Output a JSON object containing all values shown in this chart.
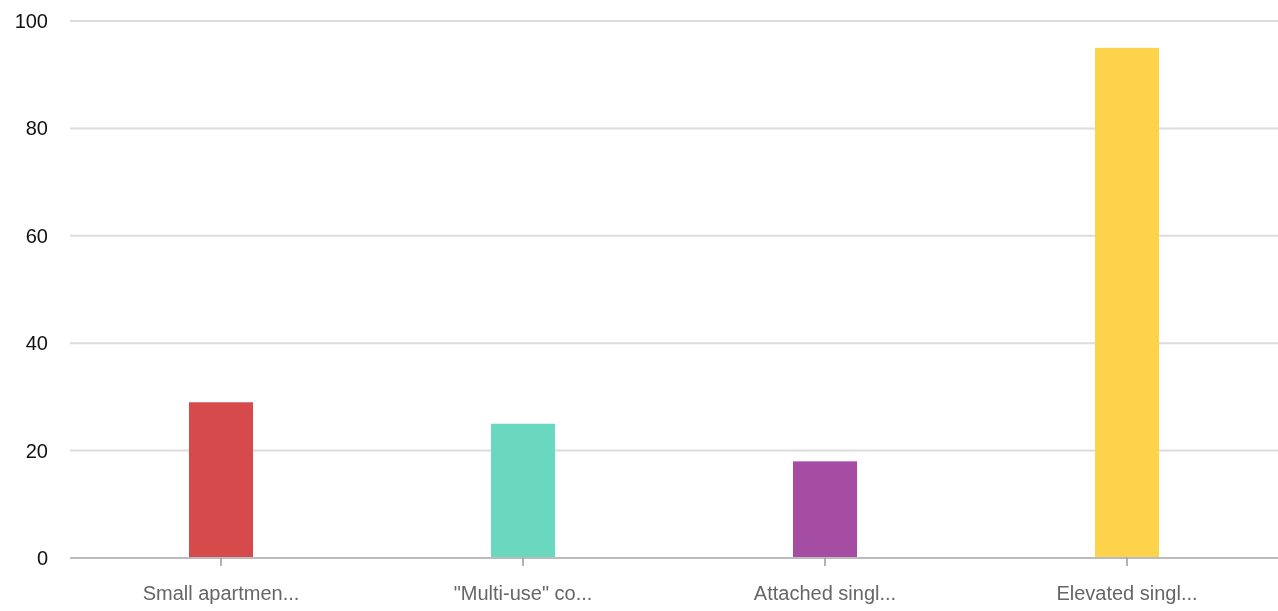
{
  "chart_data": {
    "type": "bar",
    "categories": [
      "Small apartmen...",
      "\"Multi-use\" co...",
      "Attached singl...",
      "Elevated singl..."
    ],
    "values": [
      29,
      25,
      18,
      95
    ],
    "colors": [
      "#d64a4b",
      "#6ad8bf",
      "#a44da3",
      "#fed34c"
    ],
    "ylim": [
      0,
      100
    ],
    "yticks": [
      0,
      20,
      40,
      60,
      80,
      100
    ],
    "grid": "y"
  }
}
